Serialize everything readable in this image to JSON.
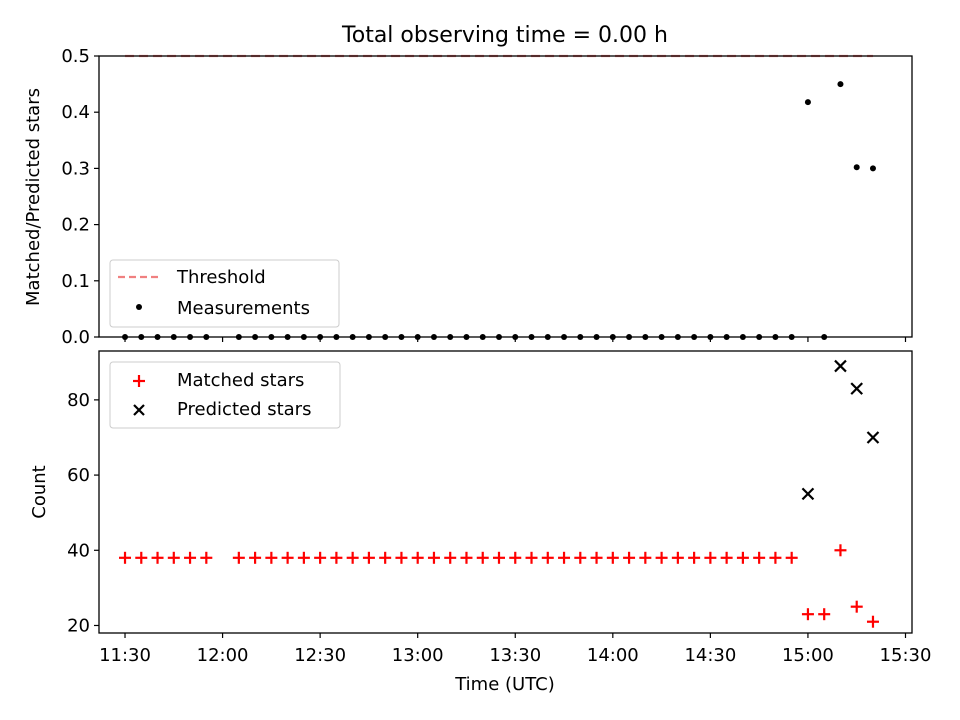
{
  "chart_data": [
    {
      "type": "scatter",
      "title": "Total observing time = 0.00 h",
      "xlabel": "",
      "ylabel": "Matched/Predicted stars",
      "xlim": [
        "11:22",
        "15:32"
      ],
      "ylim": [
        0,
        0.5
      ],
      "xticks": [
        "11:30",
        "12:00",
        "12:30",
        "13:00",
        "13:30",
        "14:00",
        "14:30",
        "15:00",
        "15:30"
      ],
      "yticks": [
        "0.0",
        "0.1",
        "0.2",
        "0.3",
        "0.4",
        "0.5"
      ],
      "grid": false,
      "legend_position": "lower-left",
      "threshold": {
        "name": "Threshold",
        "value": 0.5,
        "x_start": "11:30",
        "x_end": "15:20",
        "color": "#f08080",
        "style": "dashed"
      },
      "series": [
        {
          "name": "Measurements",
          "color": "#000000",
          "marker": "dot",
          "points": [
            [
              "11:30",
              0
            ],
            [
              "11:35",
              0
            ],
            [
              "11:40",
              0
            ],
            [
              "11:45",
              0
            ],
            [
              "11:50",
              0
            ],
            [
              "11:55",
              0
            ],
            [
              "12:05",
              0
            ],
            [
              "12:10",
              0
            ],
            [
              "12:15",
              0
            ],
            [
              "12:20",
              0
            ],
            [
              "12:25",
              0
            ],
            [
              "12:30",
              0
            ],
            [
              "12:35",
              0
            ],
            [
              "12:40",
              0
            ],
            [
              "12:45",
              0
            ],
            [
              "12:50",
              0
            ],
            [
              "12:55",
              0
            ],
            [
              "13:00",
              0
            ],
            [
              "13:05",
              0
            ],
            [
              "13:10",
              0
            ],
            [
              "13:15",
              0
            ],
            [
              "13:20",
              0
            ],
            [
              "13:25",
              0
            ],
            [
              "13:30",
              0
            ],
            [
              "13:35",
              0
            ],
            [
              "13:40",
              0
            ],
            [
              "13:45",
              0
            ],
            [
              "13:50",
              0
            ],
            [
              "13:55",
              0
            ],
            [
              "14:00",
              0
            ],
            [
              "14:05",
              0
            ],
            [
              "14:10",
              0
            ],
            [
              "14:15",
              0
            ],
            [
              "14:20",
              0
            ],
            [
              "14:25",
              0
            ],
            [
              "14:30",
              0
            ],
            [
              "14:35",
              0
            ],
            [
              "14:40",
              0
            ],
            [
              "14:45",
              0
            ],
            [
              "14:50",
              0
            ],
            [
              "14:55",
              0
            ],
            [
              "15:00",
              0.418
            ],
            [
              "15:05",
              0.0
            ],
            [
              "15:10",
              0.45
            ],
            [
              "15:15",
              0.302
            ],
            [
              "15:20",
              0.3
            ]
          ]
        }
      ]
    },
    {
      "type": "scatter",
      "title": "",
      "xlabel": "Time (UTC)",
      "ylabel": "Count",
      "xlim": [
        "11:22",
        "15:32"
      ],
      "ylim": [
        18,
        93
      ],
      "xticks": [
        "11:30",
        "12:00",
        "12:30",
        "13:00",
        "13:30",
        "14:00",
        "14:30",
        "15:00",
        "15:30"
      ],
      "yticks": [
        "20",
        "40",
        "60",
        "80"
      ],
      "grid": false,
      "legend_position": "upper-left",
      "series": [
        {
          "name": "Matched stars",
          "color": "#ff0000",
          "marker": "plus",
          "points": [
            [
              "11:30",
              38
            ],
            [
              "11:35",
              38
            ],
            [
              "11:40",
              38
            ],
            [
              "11:45",
              38
            ],
            [
              "11:50",
              38
            ],
            [
              "11:55",
              38
            ],
            [
              "12:05",
              38
            ],
            [
              "12:10",
              38
            ],
            [
              "12:15",
              38
            ],
            [
              "12:20",
              38
            ],
            [
              "12:25",
              38
            ],
            [
              "12:30",
              38
            ],
            [
              "12:35",
              38
            ],
            [
              "12:40",
              38
            ],
            [
              "12:45",
              38
            ],
            [
              "12:50",
              38
            ],
            [
              "12:55",
              38
            ],
            [
              "13:00",
              38
            ],
            [
              "13:05",
              38
            ],
            [
              "13:10",
              38
            ],
            [
              "13:15",
              38
            ],
            [
              "13:20",
              38
            ],
            [
              "13:25",
              38
            ],
            [
              "13:30",
              38
            ],
            [
              "13:35",
              38
            ],
            [
              "13:40",
              38
            ],
            [
              "13:45",
              38
            ],
            [
              "13:50",
              38
            ],
            [
              "13:55",
              38
            ],
            [
              "14:00",
              38
            ],
            [
              "14:05",
              38
            ],
            [
              "14:10",
              38
            ],
            [
              "14:15",
              38
            ],
            [
              "14:20",
              38
            ],
            [
              "14:25",
              38
            ],
            [
              "14:30",
              38
            ],
            [
              "14:35",
              38
            ],
            [
              "14:40",
              38
            ],
            [
              "14:45",
              38
            ],
            [
              "14:50",
              38
            ],
            [
              "14:55",
              38
            ],
            [
              "15:00",
              23
            ],
            [
              "15:05",
              23
            ],
            [
              "15:10",
              40
            ],
            [
              "15:15",
              25
            ],
            [
              "15:20",
              21
            ]
          ]
        },
        {
          "name": "Predicted stars",
          "color": "#000000",
          "marker": "x",
          "points": [
            [
              "15:00",
              55
            ],
            [
              "15:10",
              89
            ],
            [
              "15:15",
              83
            ],
            [
              "15:20",
              70
            ]
          ]
        }
      ]
    }
  ]
}
